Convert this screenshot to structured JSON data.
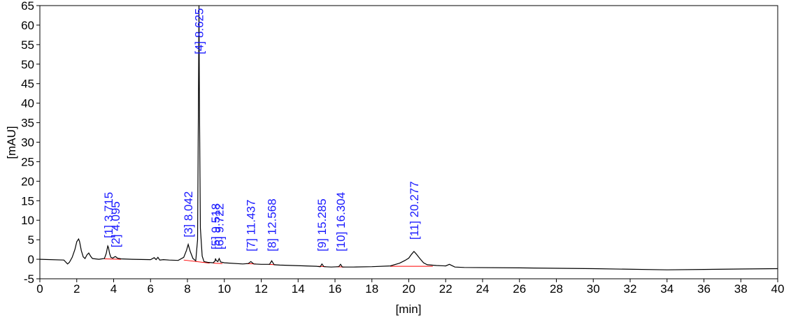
{
  "chart_data": {
    "type": "line",
    "xlabel": "[min]",
    "ylabel": "[mAU]",
    "xlim": [
      0,
      40
    ],
    "ylim": [
      -5,
      65
    ],
    "x_ticks": [
      0,
      2,
      4,
      6,
      8,
      10,
      12,
      14,
      16,
      18,
      20,
      22,
      24,
      26,
      28,
      30,
      32,
      34,
      36,
      38,
      40
    ],
    "y_ticks": [
      -5,
      0,
      5,
      10,
      15,
      20,
      25,
      30,
      35,
      40,
      45,
      50,
      55,
      60,
      65
    ],
    "grid": false,
    "colors": {
      "trace": "#000000",
      "baseline": "#ff0000",
      "labels": "#1a1aff"
    },
    "series": [
      {
        "x": [
          0,
          1.3,
          1.5,
          1.6,
          1.75,
          1.9,
          2.0,
          2.1,
          2.15,
          2.25,
          2.35,
          2.45,
          2.55,
          2.65,
          2.75,
          2.85,
          3.0,
          3.2,
          3.5,
          3.6,
          3.68,
          3.72,
          3.78,
          3.85,
          3.95,
          4.05,
          4.1,
          4.2,
          4.4,
          5.0,
          6.0,
          6.2,
          6.3,
          6.4,
          6.5,
          6.7,
          7.0,
          7.5,
          7.8,
          7.95,
          8.04,
          8.15,
          8.3,
          8.45,
          8.55,
          8.6,
          8.625,
          8.65,
          8.7,
          8.8,
          8.9,
          9.1,
          9.4,
          9.5,
          9.52,
          9.56,
          9.65,
          9.72,
          9.8,
          10.0,
          11.0,
          11.3,
          11.44,
          11.6,
          12.0,
          12.45,
          12.57,
          12.7,
          13.0,
          15.0,
          15.2,
          15.29,
          15.4,
          15.8,
          16.2,
          16.3,
          16.4,
          17.0,
          18.0,
          19.0,
          19.5,
          19.8,
          20.0,
          20.15,
          20.28,
          20.4,
          20.6,
          20.8,
          21.0,
          21.5,
          22.0,
          22.2,
          22.5,
          23.0,
          26.0,
          30.0,
          34.0,
          36.0,
          38.0,
          40.0
        ],
        "y": [
          0,
          -0.2,
          -1.2,
          -0.8,
          0.5,
          2.5,
          4.5,
          5.2,
          4.6,
          2.2,
          0.6,
          0.2,
          1.1,
          1.6,
          0.8,
          0.2,
          0.1,
          0.0,
          0.2,
          1.5,
          3.4,
          3.0,
          1.5,
          0.5,
          0.3,
          0.6,
          0.7,
          0.3,
          0.1,
          0.0,
          -0.1,
          0.4,
          -0.1,
          0.5,
          -0.2,
          -0.1,
          -0.2,
          -0.3,
          0.5,
          2.3,
          3.8,
          2.0,
          0.2,
          -0.4,
          5.0,
          42.0,
          65.0,
          42.0,
          8.0,
          0.8,
          -0.6,
          -0.8,
          -0.9,
          -0.4,
          0.2,
          -0.3,
          -0.6,
          0.2,
          -0.7,
          -0.9,
          -1.2,
          -1.1,
          -0.6,
          -1.2,
          -1.3,
          -1.3,
          -0.4,
          -1.4,
          -1.5,
          -1.8,
          -1.9,
          -1.2,
          -1.9,
          -2.0,
          -1.9,
          -1.3,
          -2.0,
          -2.0,
          -1.9,
          -1.7,
          -1.0,
          -0.3,
          0.3,
          1.3,
          2.0,
          1.4,
          0.2,
          -0.9,
          -1.4,
          -1.6,
          -1.7,
          -1.3,
          -2.0,
          -2.1,
          -2.2,
          -2.4,
          -2.7,
          -2.6,
          -2.5,
          -2.4
        ]
      }
    ],
    "baseline_segments": [
      {
        "x": [
          3.5,
          4.4
        ],
        "y": [
          0.1,
          0.0
        ]
      },
      {
        "x": [
          7.8,
          9.2
        ],
        "y": [
          -0.2,
          -1.0
        ]
      },
      {
        "x": [
          9.4,
          9.9
        ],
        "y": [
          -1.0,
          -1.1
        ]
      },
      {
        "x": [
          11.2,
          11.7
        ],
        "y": [
          -1.1,
          -1.2
        ]
      },
      {
        "x": [
          12.4,
          12.8
        ],
        "y": [
          -1.3,
          -1.4
        ]
      },
      {
        "x": [
          15.1,
          15.5
        ],
        "y": [
          -1.8,
          -1.9
        ]
      },
      {
        "x": [
          16.1,
          16.5
        ],
        "y": [
          -1.9,
          -2.0
        ]
      },
      {
        "x": [
          19.0,
          21.3
        ],
        "y": [
          -1.8,
          -1.8
        ]
      }
    ],
    "peaks": [
      {
        "id": "[1]",
        "rt": "3.715",
        "x": 3.715,
        "label_y": 5.4
      },
      {
        "id": "[2]",
        "rt": "4.095",
        "x": 4.095,
        "label_y": 3.0
      },
      {
        "id": "[3]",
        "rt": "8.042",
        "x": 8.042,
        "label_y": 5.6
      },
      {
        "id": "[4]",
        "rt": "8.625",
        "x": 8.625,
        "label_y": 52.5
      },
      {
        "id": "[5]",
        "rt": "9.518",
        "x": 9.518,
        "label_y": 2.5
      },
      {
        "id": "[6]",
        "rt": "9.722",
        "x": 9.722,
        "label_y": 2.5
      },
      {
        "id": "[7]",
        "rt": "11.437",
        "x": 11.437,
        "label_y": 2.0
      },
      {
        "id": "[8]",
        "rt": "12.568",
        "x": 12.568,
        "label_y": 2.0
      },
      {
        "id": "[9]",
        "rt": "15.285",
        "x": 15.285,
        "label_y": 2.0
      },
      {
        "id": "[10]",
        "rt": "16.304",
        "x": 16.304,
        "label_y": 2.0
      },
      {
        "id": "[11]",
        "rt": "20.277",
        "x": 20.277,
        "label_y": 5.0
      }
    ]
  }
}
